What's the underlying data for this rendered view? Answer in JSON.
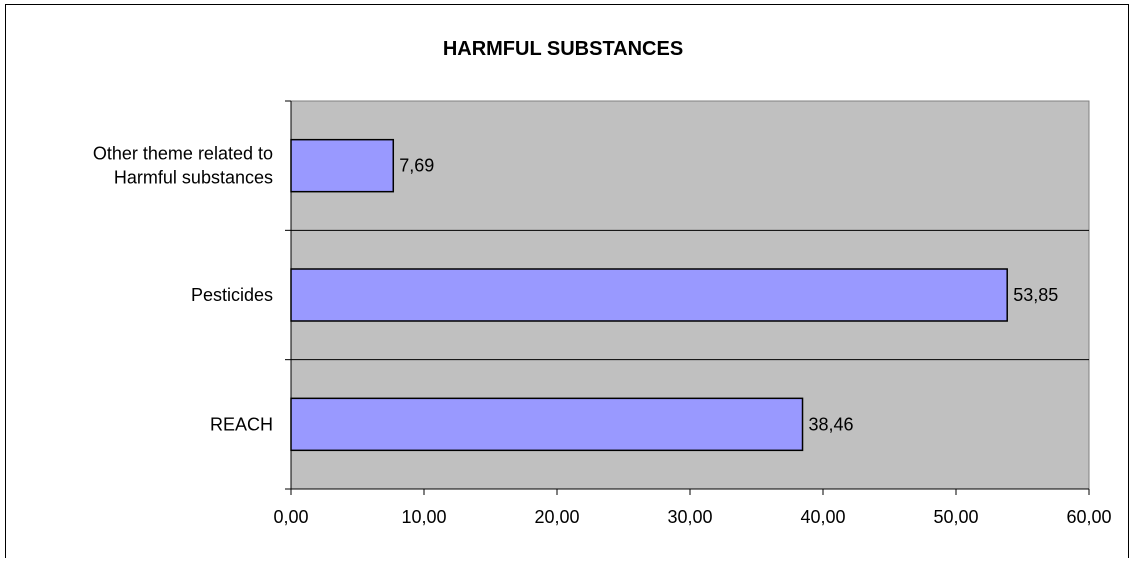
{
  "chart_data": {
    "type": "bar",
    "orientation": "horizontal",
    "title": "HARMFUL SUBSTANCES",
    "categories": [
      "Other theme related to Harmful substances",
      "Pesticides",
      "REACH"
    ],
    "category_lines": [
      [
        "Other theme related to",
        "Harmful substances"
      ],
      [
        "Pesticides"
      ],
      [
        "REACH"
      ]
    ],
    "values": [
      7.69,
      53.85,
      38.46
    ],
    "value_labels": [
      "7,69",
      "53,85",
      "38,46"
    ],
    "xlim": [
      0,
      60
    ],
    "xticks": [
      0,
      10,
      20,
      30,
      40,
      50,
      60
    ],
    "xtick_labels": [
      "0,00",
      "10,00",
      "20,00",
      "30,00",
      "40,00",
      "50,00",
      "60,00"
    ],
    "xlabel": "",
    "ylabel": "",
    "grid": "horizontal category separators",
    "legend": "none",
    "colors": {
      "bar_fill": "#9999ff",
      "bar_stroke": "#000000",
      "plot_background": "#c0c0c0",
      "gridline": "#000000",
      "frame": "#000000"
    }
  }
}
